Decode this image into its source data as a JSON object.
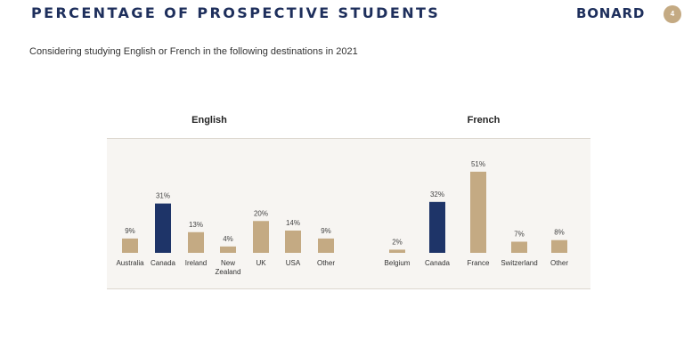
{
  "header": {
    "title": "PERCENTAGE OF PROSPECTIVE STUDENTS",
    "brand": "BONARD",
    "page_number": "4"
  },
  "subtitle": "Considering studying English or French in the following destinations in 2021",
  "colors": {
    "highlight": "#1e3468",
    "bar": "#c4aa83"
  },
  "chart_data": [
    {
      "type": "bar",
      "title": "English",
      "categories": [
        [
          "Australia"
        ],
        [
          "Canada"
        ],
        [
          "Ireland"
        ],
        [
          "New",
          "Zealand"
        ],
        [
          "UK"
        ],
        [
          "USA"
        ],
        [
          "Other"
        ]
      ],
      "values": [
        9,
        31,
        13,
        4,
        20,
        14,
        9
      ],
      "value_labels": [
        "9%",
        "31%",
        "13%",
        "4%",
        "20%",
        "14%",
        "9%"
      ],
      "highlight_index": 1,
      "unit": "%"
    },
    {
      "type": "bar",
      "title": "French",
      "categories": [
        [
          "Belgium"
        ],
        [
          "Canada"
        ],
        [
          "France"
        ],
        [
          "Switzerland"
        ],
        [
          "Other"
        ]
      ],
      "values": [
        2,
        32,
        51,
        7,
        8
      ],
      "value_labels": [
        "2%",
        "32%",
        "51%",
        "7%",
        "8%"
      ],
      "highlight_index": 1,
      "unit": "%"
    }
  ]
}
